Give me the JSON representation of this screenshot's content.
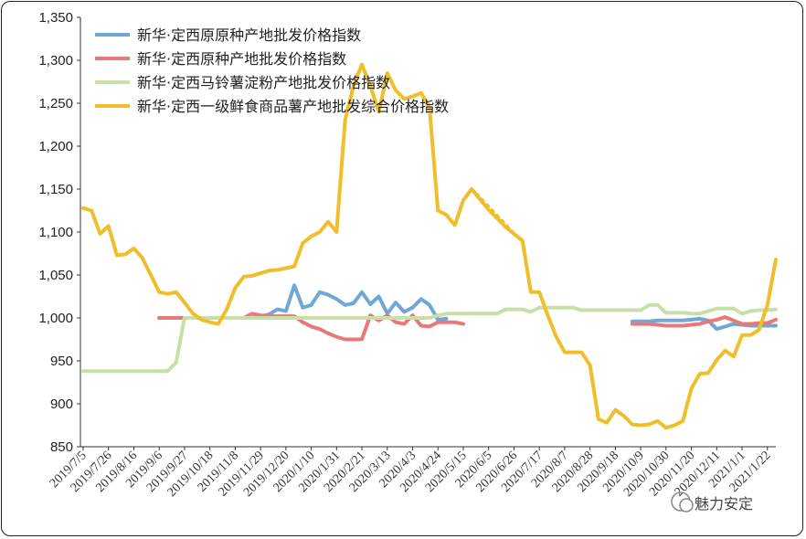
{
  "chart_data": {
    "type": "line",
    "title": "",
    "xlabel": "",
    "ylabel": "",
    "ylim": [
      850,
      1350
    ],
    "yticks": [
      "850",
      "900",
      "950",
      "1,000",
      "1,050",
      "1,100",
      "1,150",
      "1,200",
      "1,250",
      "1,300",
      "1,350"
    ],
    "yticks_values": [
      850,
      900,
      950,
      1000,
      1050,
      1100,
      1150,
      1200,
      1250,
      1300,
      1350
    ],
    "x_tick_labels": [
      "2019/7/5",
      "2019/7/26",
      "2019/8/16",
      "2019/9/6",
      "2019/9/27",
      "2019/10/18",
      "2019/11/8",
      "2019/11/29",
      "2019/12/20",
      "2020/1/10",
      "2020/1/31",
      "2020/2/21",
      "2020/3/13",
      "2020/4/3",
      "2020/4/24",
      "2020/5/15",
      "2020/6/5",
      "2020/6/26",
      "2020/7/17",
      "2020/8/7",
      "2020/8/28",
      "2020/9/18",
      "2020/10/9",
      "2020/10/30",
      "2020/11/20",
      "2020/12/11",
      "2021/1/1",
      "2021/1/22"
    ],
    "n_points": 83,
    "grid": false,
    "legend_position": "top-left",
    "series": [
      {
        "name": "新华·定西原原种产地批发价格指数",
        "color": "#6fa8d6",
        "values": [
          null,
          null,
          null,
          null,
          null,
          null,
          null,
          null,
          null,
          1000,
          1000,
          1000,
          1000,
          1000,
          1000,
          1000,
          1000,
          1000,
          1000,
          1000,
          1000,
          1002,
          1004,
          1010,
          1008,
          1038,
          1012,
          1015,
          1030,
          1027,
          1022,
          1015,
          1017,
          1030,
          1016,
          1025,
          1005,
          1018,
          1007,
          1012,
          1022,
          1015,
          998,
          999,
          null,
          null,
          null,
          null,
          null,
          null,
          null,
          null,
          null,
          null,
          null,
          null,
          null,
          null,
          null,
          null,
          null,
          null,
          null,
          null,
          null,
          996,
          996,
          996,
          997,
          997,
          997,
          997,
          998,
          999,
          997,
          987,
          990,
          993,
          992,
          991,
          991,
          991,
          991
        ],
        "dotted_gap": [
          46,
          64
        ]
      },
      {
        "name": "新华·定西原种产地批发价格指数",
        "color": "#e8787a",
        "values": [
          null,
          null,
          null,
          null,
          null,
          null,
          null,
          null,
          null,
          1000,
          1000,
          1000,
          1000,
          1000,
          1000,
          1000,
          1000,
          1000,
          1000,
          1000,
          1005,
          1003,
          1002,
          1002,
          1002,
          1002,
          995,
          990,
          987,
          982,
          978,
          975,
          975,
          975,
          1003,
          997,
          1003,
          995,
          993,
          1003,
          991,
          990,
          995,
          995,
          995,
          993,
          null,
          null,
          null,
          null,
          null,
          null,
          null,
          null,
          null,
          null,
          null,
          null,
          null,
          null,
          null,
          null,
          null,
          null,
          null,
          993,
          993,
          993,
          992,
          991,
          991,
          991,
          992,
          993,
          996,
          998,
          1001,
          997,
          993,
          993,
          994,
          994,
          998
        ],
        "dotted_gap": [
          46,
          64
        ]
      },
      {
        "name": "新华·定西马铃薯淀粉产地批发价格指数",
        "color": "#c6e0a8",
        "values": [
          938,
          938,
          938,
          938,
          938,
          938,
          938,
          938,
          938,
          938,
          938,
          948,
          1000,
          1000,
          1000,
          1000,
          1000,
          1000,
          1000,
          1000,
          1000,
          1000,
          1000,
          1000,
          1000,
          1000,
          1000,
          1000,
          1000,
          1000,
          1000,
          1000,
          1000,
          1000,
          1000,
          1000,
          1000,
          1000,
          1000,
          1000,
          1000,
          1000,
          1003,
          1005,
          1005,
          1005,
          1005,
          1005,
          1005,
          1005,
          1010,
          1010,
          1010,
          1007,
          1012,
          1012,
          1012,
          1012,
          1012,
          1009,
          1009,
          1009,
          1009,
          1009,
          1009,
          1009,
          1009,
          1015,
          1015,
          1006,
          1006,
          1006,
          1005,
          1005,
          1008,
          1011,
          1011,
          1011,
          1005,
          1008,
          1009,
          1009,
          1010
        ],
        "dotted_gap": null
      },
      {
        "name": "新华·定西一级鲜食商品薯产地批发综合价格指数",
        "color": "#f0be2a",
        "values": [
          1128,
          1125,
          1098,
          1107,
          1073,
          1074,
          1081,
          1070,
          1050,
          1030,
          1028,
          1030,
          1018,
          1005,
          998,
          995,
          993,
          1010,
          1035,
          1048,
          1049,
          1052,
          1055,
          1056,
          1058,
          1060,
          1087,
          1095,
          1100,
          1112,
          1100,
          1230,
          1270,
          1295,
          1270,
          1240,
          1285,
          1265,
          1255,
          1258,
          1262,
          1245,
          1125,
          1120,
          1108,
          1137,
          1150,
          1138,
          1126,
          1116,
          1106,
          1098,
          1090,
          1030,
          1030,
          1003,
          978,
          960,
          960,
          960,
          945,
          882,
          878,
          893,
          886,
          876,
          875,
          876,
          880,
          872,
          875,
          880,
          918,
          935,
          936,
          951,
          962,
          955,
          980,
          980,
          986,
          1015,
          1068
        ],
        "dotted_gap": [
          46,
          51
        ]
      }
    ]
  },
  "watermark": "魅力安定"
}
